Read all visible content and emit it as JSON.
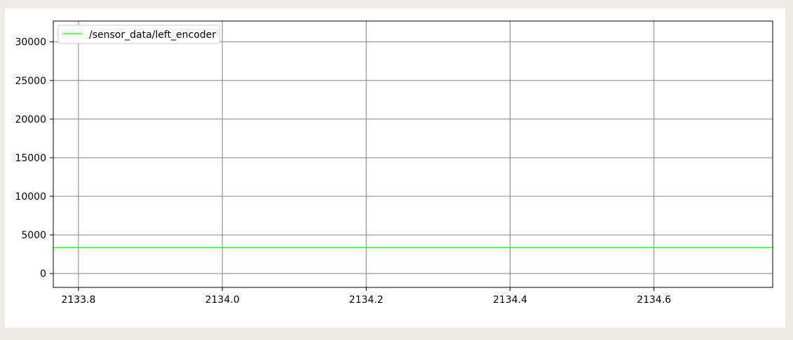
{
  "chart_data": {
    "type": "line",
    "title": "",
    "xlabel": "",
    "ylabel": "",
    "xlim": [
      2133.765,
      2134.765
    ],
    "ylim": [
      -1800,
      32700
    ],
    "x_ticks": [
      2133.8,
      2134.0,
      2134.2,
      2134.4,
      2134.6
    ],
    "x_tick_labels": [
      "2133.8",
      "2134.0",
      "2134.2",
      "2134.4",
      "2134.6"
    ],
    "y_ticks": [
      0,
      5000,
      10000,
      15000,
      20000,
      25000,
      30000
    ],
    "y_tick_labels": [
      "0",
      "5000",
      "10000",
      "15000",
      "20000",
      "25000",
      "30000"
    ],
    "grid": true,
    "legend_position": "top-left",
    "series": [
      {
        "name": "/sensor_data/left_encoder",
        "color": "#00ff00",
        "x": [
          2133.765,
          2134.765
        ],
        "y": [
          3350,
          3350
        ]
      }
    ]
  }
}
